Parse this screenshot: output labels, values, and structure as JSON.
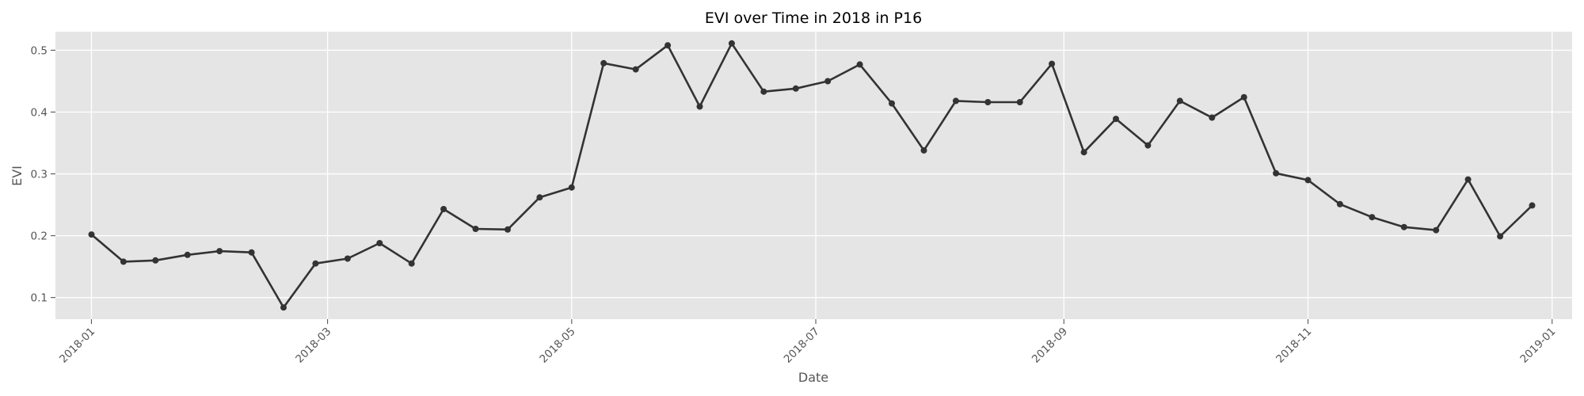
{
  "chart_data": {
    "type": "line",
    "title": "EVI over Time in 2018 in P16",
    "xlabel": "Date",
    "ylabel": "EVI",
    "x_axis_type": "date",
    "xlim": [
      "2017-12-23",
      "2019-01-06"
    ],
    "ylim": [
      0.065,
      0.53
    ],
    "x_ticks": [
      "2018-01-01",
      "2018-03-01",
      "2018-05-01",
      "2018-07-01",
      "2018-09-01",
      "2018-11-01",
      "2019-01-01"
    ],
    "x_tick_labels": [
      "2018-01",
      "2018-03",
      "2018-05",
      "2018-07",
      "2018-09",
      "2018-11",
      "2019-01"
    ],
    "y_ticks": [
      0.1,
      0.2,
      0.3,
      0.4,
      0.5
    ],
    "y_tick_labels": [
      "0.1",
      "0.2",
      "0.3",
      "0.4",
      "0.5"
    ],
    "grid": true,
    "background": "#e5e5e5",
    "line_color": "#333333",
    "marker": "circle",
    "series": [
      {
        "x": [
          "2018-01-01",
          "2018-01-09",
          "2018-01-17",
          "2018-01-25",
          "2018-02-02",
          "2018-02-10",
          "2018-02-18",
          "2018-02-26",
          "2018-03-06",
          "2018-03-14",
          "2018-03-22",
          "2018-03-30",
          "2018-04-07",
          "2018-04-15",
          "2018-04-23",
          "2018-05-01",
          "2018-05-09",
          "2018-05-17",
          "2018-05-25",
          "2018-06-02",
          "2018-06-10",
          "2018-06-18",
          "2018-06-26",
          "2018-07-04",
          "2018-07-12",
          "2018-07-20",
          "2018-07-28",
          "2018-08-05",
          "2018-08-13",
          "2018-08-21",
          "2018-08-29",
          "2018-09-06",
          "2018-09-14",
          "2018-09-22",
          "2018-09-30",
          "2018-10-08",
          "2018-10-16",
          "2018-10-24",
          "2018-11-01",
          "2018-11-09",
          "2018-11-17",
          "2018-11-25",
          "2018-12-03",
          "2018-12-11",
          "2018-12-19",
          "2018-12-27"
        ],
        "y": [
          0.202,
          0.158,
          0.16,
          0.169,
          0.175,
          0.173,
          0.084,
          0.155,
          0.163,
          0.188,
          0.155,
          0.243,
          0.211,
          0.21,
          0.262,
          0.278,
          0.479,
          0.469,
          0.508,
          0.409,
          0.511,
          0.433,
          0.438,
          0.45,
          0.477,
          0.414,
          0.338,
          0.418,
          0.416,
          0.416,
          0.478,
          0.335,
          0.389,
          0.346,
          0.418,
          0.391,
          0.424,
          0.301,
          0.29,
          0.251,
          0.23,
          0.214,
          0.209,
          0.291,
          0.199,
          0.249
        ]
      }
    ]
  }
}
